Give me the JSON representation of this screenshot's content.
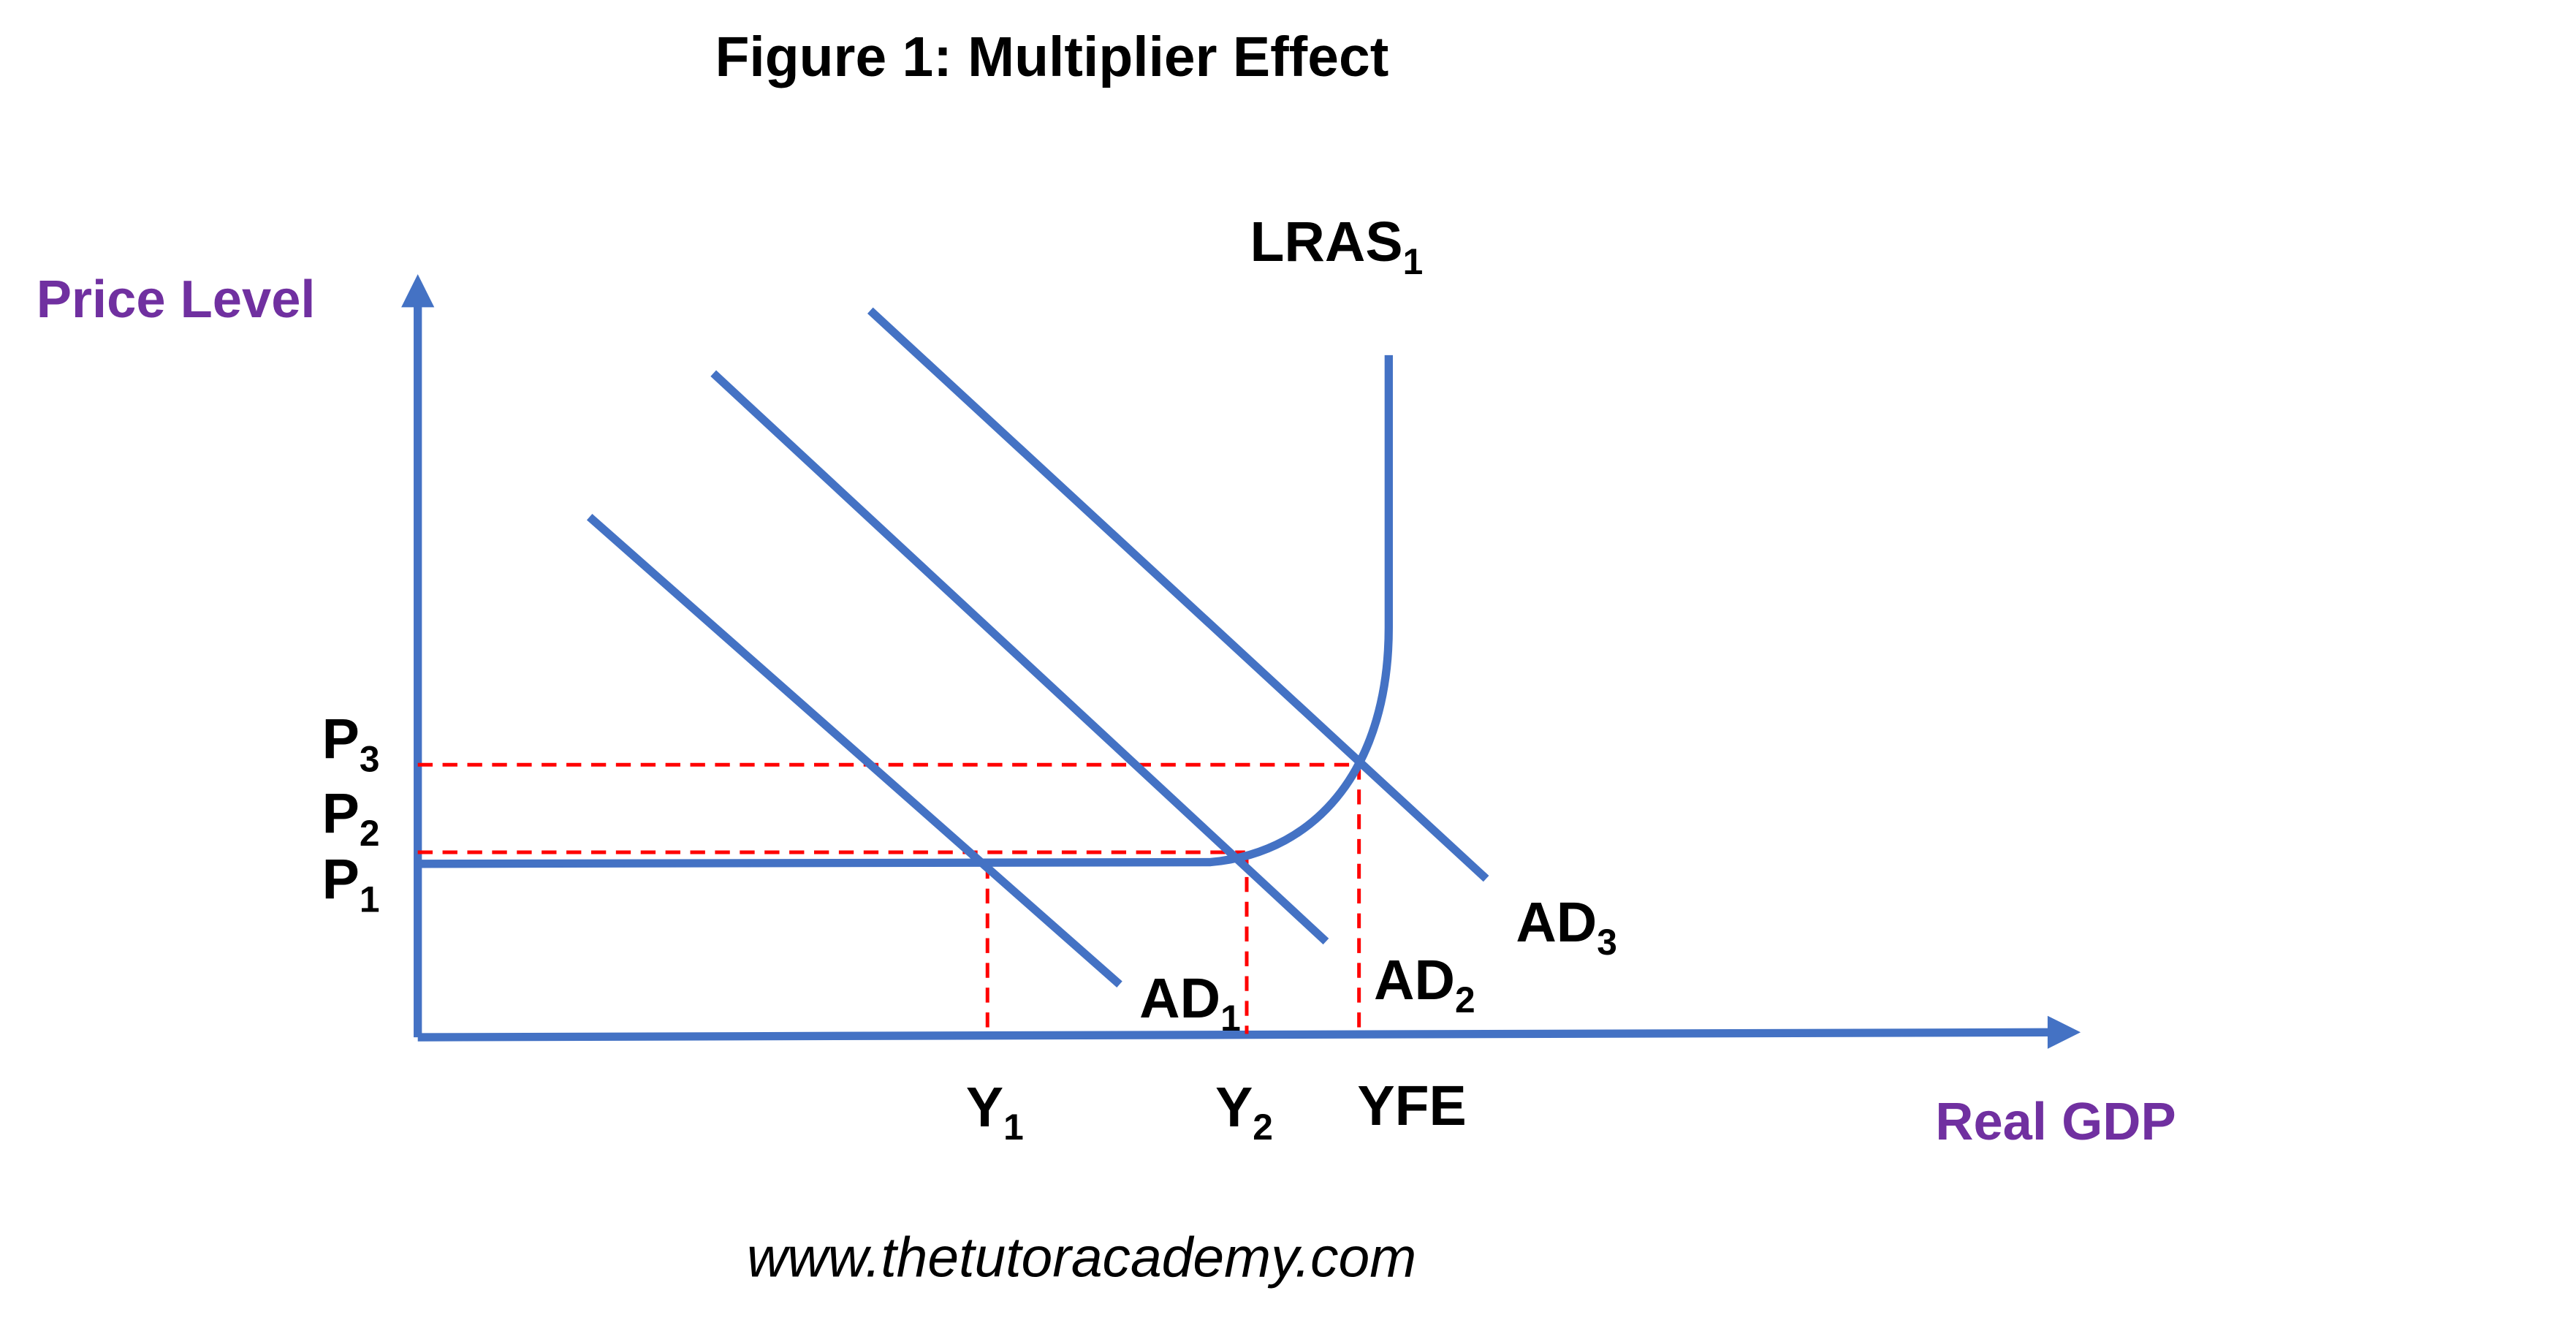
{
  "title": "Figure 1: Multiplier Effect",
  "y_axis_label": "Price Level",
  "x_axis_label": "Real GDP",
  "curves": {
    "lras": {
      "text": "LRAS",
      "sub": "1"
    },
    "ad1": {
      "text": "AD",
      "sub": "1"
    },
    "ad2": {
      "text": "AD",
      "sub": "2"
    },
    "ad3": {
      "text": "AD",
      "sub": "3"
    }
  },
  "price_levels": [
    {
      "text": "P",
      "sub": "3"
    },
    {
      "text": "P",
      "sub": "2"
    },
    {
      "text": "P",
      "sub": "1"
    }
  ],
  "output_levels": [
    {
      "text": "Y",
      "sub": "1"
    },
    {
      "text": "Y",
      "sub": "2"
    },
    {
      "text": "YFE"
    }
  ],
  "footer": "www.thetutoracademy.com"
}
